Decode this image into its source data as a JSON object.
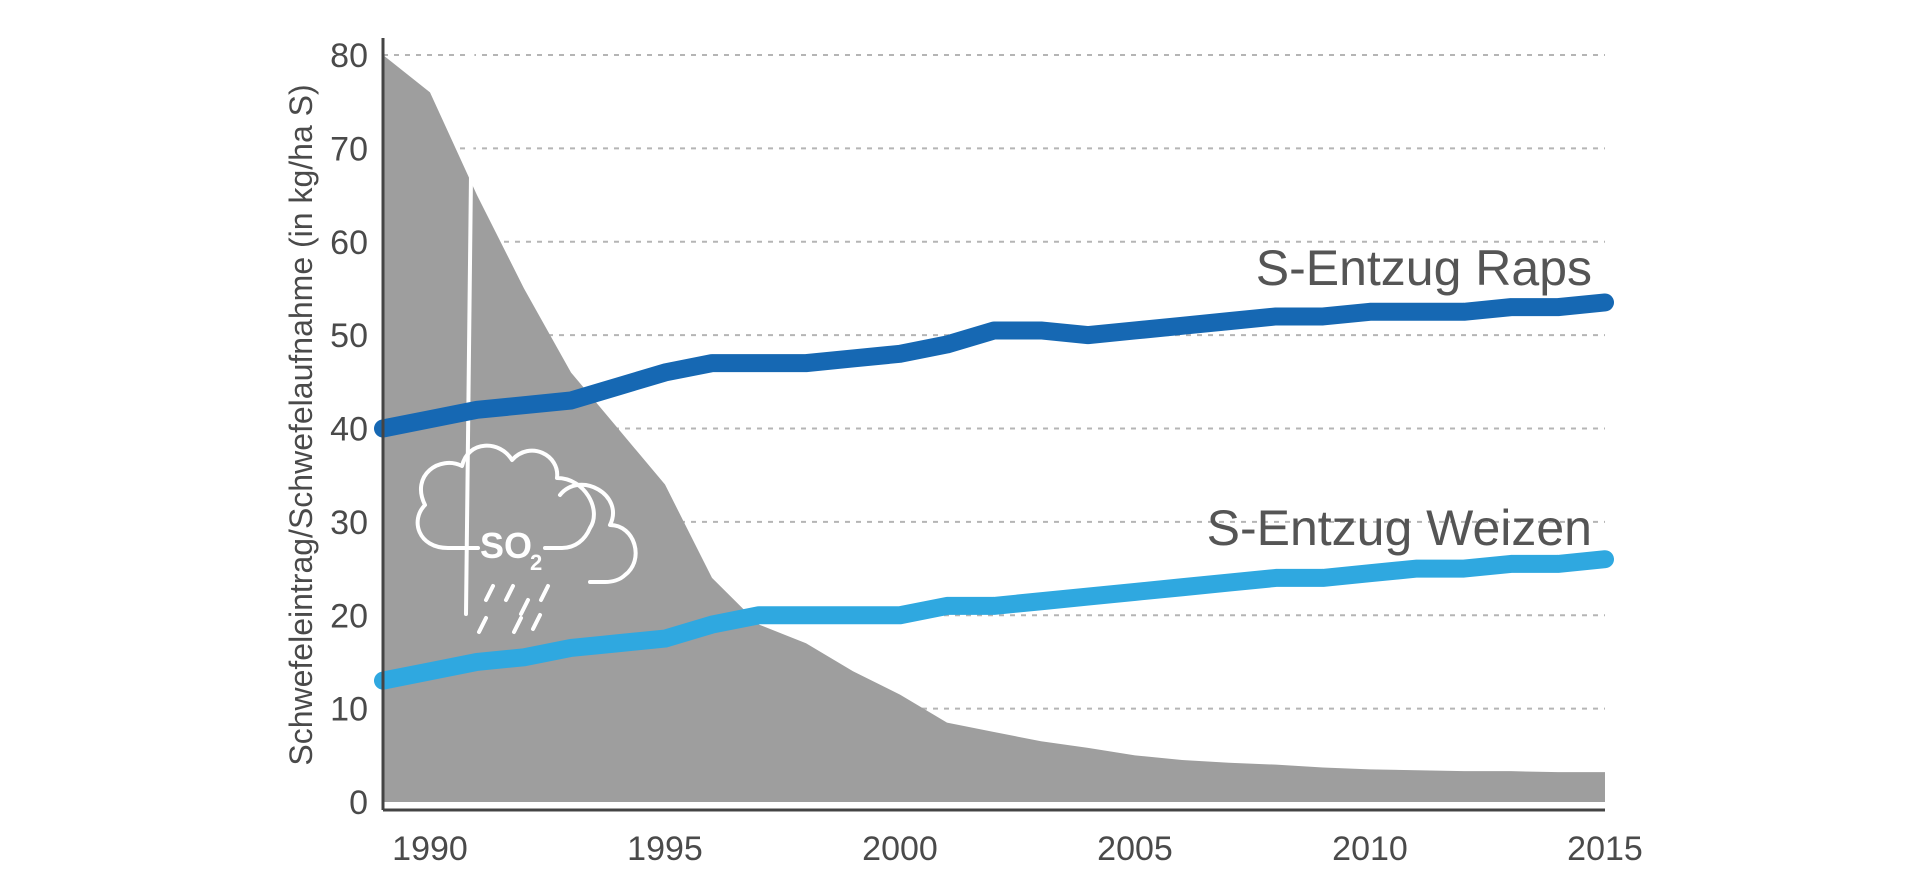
{
  "chart_data": {
    "type": "area",
    "title": "",
    "xlabel": "",
    "ylabel": "Schwefeleintrag/Schwefelaufnahme (in kg/ha S)",
    "xlim": [
      1989,
      2015
    ],
    "ylim": [
      0,
      80
    ],
    "x_ticks": [
      1990,
      1995,
      2000,
      2005,
      2010,
      2015
    ],
    "y_ticks": [
      0,
      10,
      20,
      30,
      40,
      50,
      60,
      70,
      80
    ],
    "grid": true,
    "icon": {
      "name": "cloud-rain-icon",
      "label_main": "SO",
      "label_sub": "2"
    },
    "colors": {
      "area": "#9e9e9e",
      "raps": "#1668b3",
      "weizen": "#2fa8e0",
      "grid": "#b5b5b5",
      "axis": "#444444"
    },
    "series": [
      {
        "name": "",
        "kind": "area",
        "x": [
          1989,
          1990,
          1991,
          1992,
          1993,
          1994,
          1995,
          1996,
          1997,
          1998,
          1999,
          2000,
          2001,
          2002,
          2003,
          2004,
          2005,
          2006,
          2007,
          2008,
          2009,
          2010,
          2011,
          2012,
          2013,
          2014,
          2015
        ],
        "values": [
          80,
          76,
          65,
          55,
          46,
          40,
          34,
          24,
          19,
          17,
          14,
          11.5,
          8.5,
          7.5,
          6.5,
          5.8,
          5,
          4.5,
          4.2,
          4,
          3.7,
          3.5,
          3.4,
          3.3,
          3.3,
          3.2,
          3.2
        ]
      },
      {
        "name": "S-Entzug Raps",
        "kind": "line",
        "x": [
          1989,
          1990,
          1991,
          1992,
          1993,
          1994,
          1995,
          1996,
          1997,
          1998,
          1999,
          2000,
          2001,
          2002,
          2003,
          2004,
          2005,
          2006,
          2007,
          2008,
          2009,
          2010,
          2011,
          2012,
          2013,
          2014,
          2015
        ],
        "values": [
          40,
          41,
          42,
          42.5,
          43,
          44.5,
          46,
          47,
          47,
          47,
          47.5,
          48,
          49,
          50.5,
          50.5,
          50,
          50.5,
          51,
          51.5,
          52,
          52,
          52.5,
          52.5,
          52.5,
          53,
          53,
          53.5
        ]
      },
      {
        "name": "S-Entzug Weizen",
        "kind": "line",
        "x": [
          1989,
          1990,
          1991,
          1992,
          1993,
          1994,
          1995,
          1996,
          1997,
          1998,
          1999,
          2000,
          2001,
          2002,
          2003,
          2004,
          2005,
          2006,
          2007,
          2008,
          2009,
          2010,
          2011,
          2012,
          2013,
          2014,
          2015
        ],
        "values": [
          13,
          14,
          15,
          15.5,
          16.5,
          17,
          17.5,
          19,
          20,
          20,
          20,
          20,
          21,
          21,
          21.5,
          22,
          22.5,
          23,
          23.5,
          24,
          24,
          24.5,
          25,
          25,
          25.5,
          25.5,
          26
        ]
      }
    ]
  }
}
